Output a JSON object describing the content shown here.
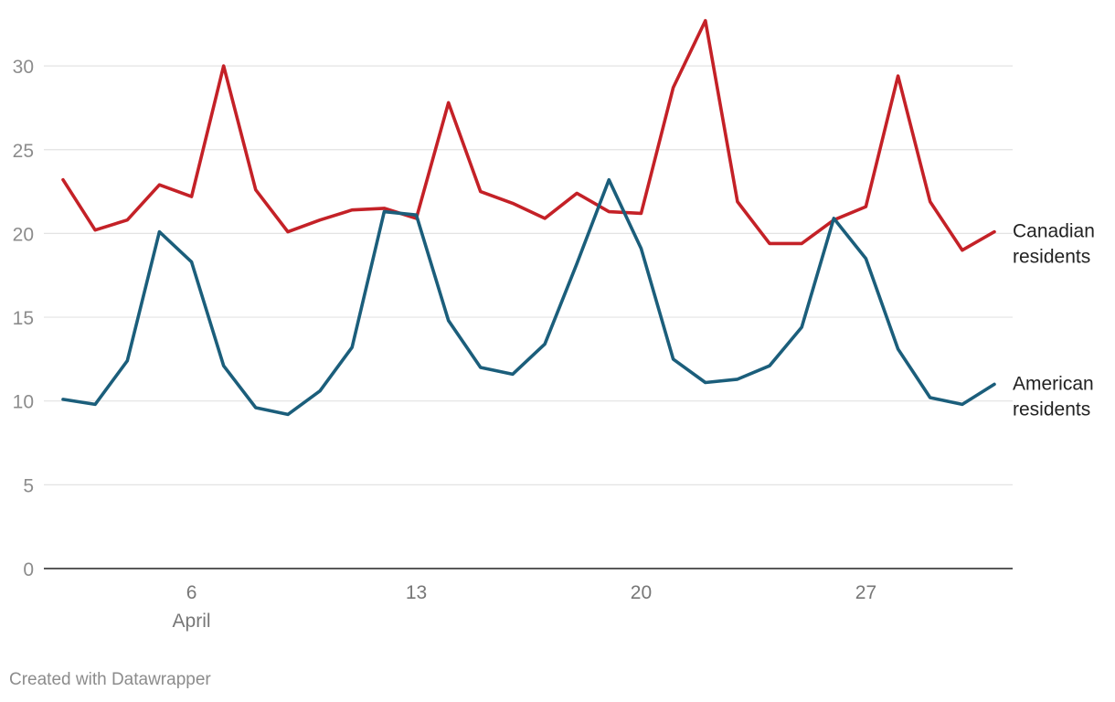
{
  "chart_data": {
    "type": "line",
    "title": "",
    "xlabel": "",
    "ylabel": "",
    "x": [
      2,
      3,
      4,
      5,
      6,
      7,
      8,
      9,
      10,
      11,
      12,
      13,
      14,
      15,
      16,
      17,
      18,
      19,
      20,
      21,
      22,
      23,
      24,
      25,
      26,
      27,
      28,
      29,
      30,
      31
    ],
    "x_range": [
      2,
      31
    ],
    "ylim": [
      0,
      32.5
    ],
    "y_ticks": [
      0,
      5,
      10,
      15,
      20,
      25,
      30
    ],
    "y_tick_labels": [
      "0",
      "5",
      "10",
      "15",
      "20",
      "25",
      "30"
    ],
    "x_ticks": [
      6,
      13,
      20,
      27
    ],
    "x_tick_labels": [
      "6",
      "13",
      "20",
      "27"
    ],
    "x_sub_label": "April",
    "grid": true,
    "series": [
      {
        "name": "Canadian residents",
        "label_lines": [
          "Canadian",
          "residents"
        ],
        "color": "#c42127",
        "values": [
          23.2,
          20.2,
          20.8,
          22.9,
          22.2,
          30.0,
          22.6,
          20.1,
          20.8,
          21.4,
          21.5,
          20.9,
          27.8,
          22.5,
          21.8,
          20.9,
          22.4,
          21.3,
          21.2,
          28.7,
          32.7,
          21.9,
          19.4,
          19.4,
          20.8,
          21.6,
          29.4,
          21.9,
          19.0,
          20.1
        ]
      },
      {
        "name": "American residents",
        "label_lines": [
          "American",
          "residents"
        ],
        "color": "#1b5e7b",
        "values": [
          10.1,
          9.8,
          12.4,
          20.1,
          18.3,
          12.1,
          9.6,
          9.2,
          10.6,
          13.2,
          21.3,
          21.1,
          14.8,
          12.0,
          11.6,
          13.4,
          18.2,
          23.2,
          19.1,
          12.5,
          11.1,
          11.3,
          12.1,
          14.4,
          20.9,
          18.5,
          13.1,
          10.2,
          9.8,
          11.0
        ]
      }
    ]
  },
  "footer": {
    "credit": "Created with Datawrapper"
  }
}
